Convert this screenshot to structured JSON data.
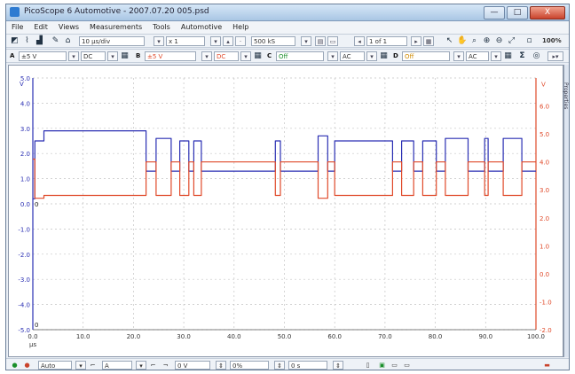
{
  "window": {
    "title": "PicoScope 6 Automotive - 2007.07.20 005.psd",
    "controls": [
      "—",
      "□",
      "X"
    ]
  },
  "menu": [
    "File",
    "Edit",
    "Views",
    "Measurements",
    "Tools",
    "Automotive",
    "Help"
  ],
  "toolbar1": {
    "timebase": "10 µs/div",
    "zoom": "x 1",
    "samples": "500 kS",
    "buffer": "1 of 1",
    "zoom_percent": "100%"
  },
  "toolbar2": {
    "channels": [
      {
        "label": "A",
        "range": "±5 V",
        "coupling": "DC",
        "color": "#2a2fb3"
      },
      {
        "label": "B",
        "range": "±5 V",
        "coupling": "DC",
        "color": "#e04a2a"
      },
      {
        "label": "C",
        "range": "Off",
        "coupling": "AC",
        "color": "#1a8f2a"
      },
      {
        "label": "D",
        "range": "Off",
        "coupling": "AC",
        "color": "#d08a00"
      }
    ]
  },
  "side_tab": "Properties",
  "chart_data": {
    "type": "line",
    "xlabel": "µs",
    "xlim": [
      0,
      100
    ],
    "x_ticks": [
      "0.0",
      "10.0",
      "20.0",
      "30.0",
      "40.0",
      "50.0",
      "60.0",
      "70.0",
      "80.0",
      "90.0",
      "100.0"
    ],
    "left_axis": {
      "unit": "V",
      "ylim": [
        -5,
        5
      ],
      "ticks": [
        "5.0",
        "4.0",
        "3.0",
        "2.0",
        "1.0",
        "0.0",
        "-1.0",
        "-2.0",
        "-3.0",
        "-4.0",
        "-5.0"
      ],
      "color": "#2a2fb3"
    },
    "right_axis": {
      "unit": "V",
      "ylim": [
        -2,
        7
      ],
      "ticks": [
        "6.0",
        "5.0",
        "4.0",
        "3.0",
        "2.0",
        "1.0",
        "0.0",
        "-1.0",
        "-2.0"
      ],
      "color": "#e04a2a"
    },
    "grid": true,
    "series": [
      {
        "color": "#2a2fb3",
        "axis": "left",
        "x": [
          0,
          0.4,
          0.4,
          2.2,
          2.2,
          22.5,
          22.5,
          24.5,
          24.5,
          27.5,
          27.5,
          29.2,
          29.2,
          31.0,
          31.0,
          32.0,
          32.0,
          33.5,
          33.5,
          48.2,
          48.2,
          49.2,
          49.2,
          56.7,
          56.7,
          58.6,
          58.6,
          60.0,
          60.0,
          71.5,
          71.5,
          73.3,
          73.3,
          75.7,
          75.7,
          77.5,
          77.5,
          80.2,
          80.2,
          82.0,
          82.0,
          86.5,
          86.5,
          89.8,
          89.8,
          90.5,
          90.5,
          93.5,
          93.5,
          97.2,
          97.2,
          100
        ],
        "y": [
          0.2,
          0.2,
          2.5,
          2.5,
          2.9,
          2.9,
          1.3,
          1.3,
          2.6,
          2.6,
          1.3,
          1.3,
          2.5,
          2.5,
          1.3,
          1.3,
          2.5,
          2.5,
          1.3,
          1.3,
          2.5,
          2.5,
          1.3,
          1.3,
          2.7,
          2.7,
          1.3,
          1.3,
          2.5,
          2.5,
          1.3,
          1.3,
          2.5,
          2.5,
          1.3,
          1.3,
          2.5,
          2.5,
          1.3,
          1.3,
          2.6,
          2.6,
          1.3,
          1.3,
          2.6,
          2.6,
          1.3,
          1.3,
          2.6,
          2.6,
          1.3,
          1.3
        ]
      },
      {
        "color": "#e04a2a",
        "axis": "right",
        "x": [
          0,
          0.4,
          0.4,
          2.2,
          2.2,
          22.5,
          22.5,
          24.5,
          24.5,
          27.5,
          27.5,
          29.2,
          29.2,
          31.0,
          31.0,
          32.0,
          32.0,
          33.5,
          33.5,
          48.2,
          48.2,
          49.2,
          49.2,
          56.7,
          56.7,
          58.6,
          58.6,
          60.0,
          60.0,
          71.5,
          71.5,
          73.3,
          73.3,
          75.7,
          75.7,
          77.5,
          77.5,
          80.2,
          80.2,
          82.0,
          82.0,
          86.5,
          86.5,
          89.8,
          89.8,
          90.5,
          90.5,
          93.5,
          93.5,
          97.2,
          97.2,
          100
        ],
        "y": [
          4.1,
          4.1,
          2.7,
          2.7,
          2.8,
          2.8,
          4.0,
          4.0,
          2.8,
          2.8,
          4.0,
          4.0,
          2.8,
          2.8,
          4.0,
          4.0,
          2.8,
          2.8,
          4.0,
          4.0,
          2.8,
          2.8,
          4.0,
          4.0,
          2.7,
          2.7,
          4.0,
          4.0,
          2.8,
          2.8,
          4.0,
          4.0,
          2.8,
          2.8,
          4.0,
          4.0,
          2.8,
          2.8,
          4.0,
          4.0,
          2.8,
          2.8,
          4.0,
          4.0,
          2.8,
          2.8,
          4.0,
          4.0,
          2.8,
          2.8,
          4.0,
          4.0
        ]
      }
    ],
    "markers": {
      "left_zero": "0",
      "bottom_left": "0"
    }
  },
  "status": {
    "trigger_mode": "Auto",
    "trigger_channel": "A",
    "trigger_level": "0 V",
    "pre_trigger": "0%",
    "delay": "0 s"
  }
}
